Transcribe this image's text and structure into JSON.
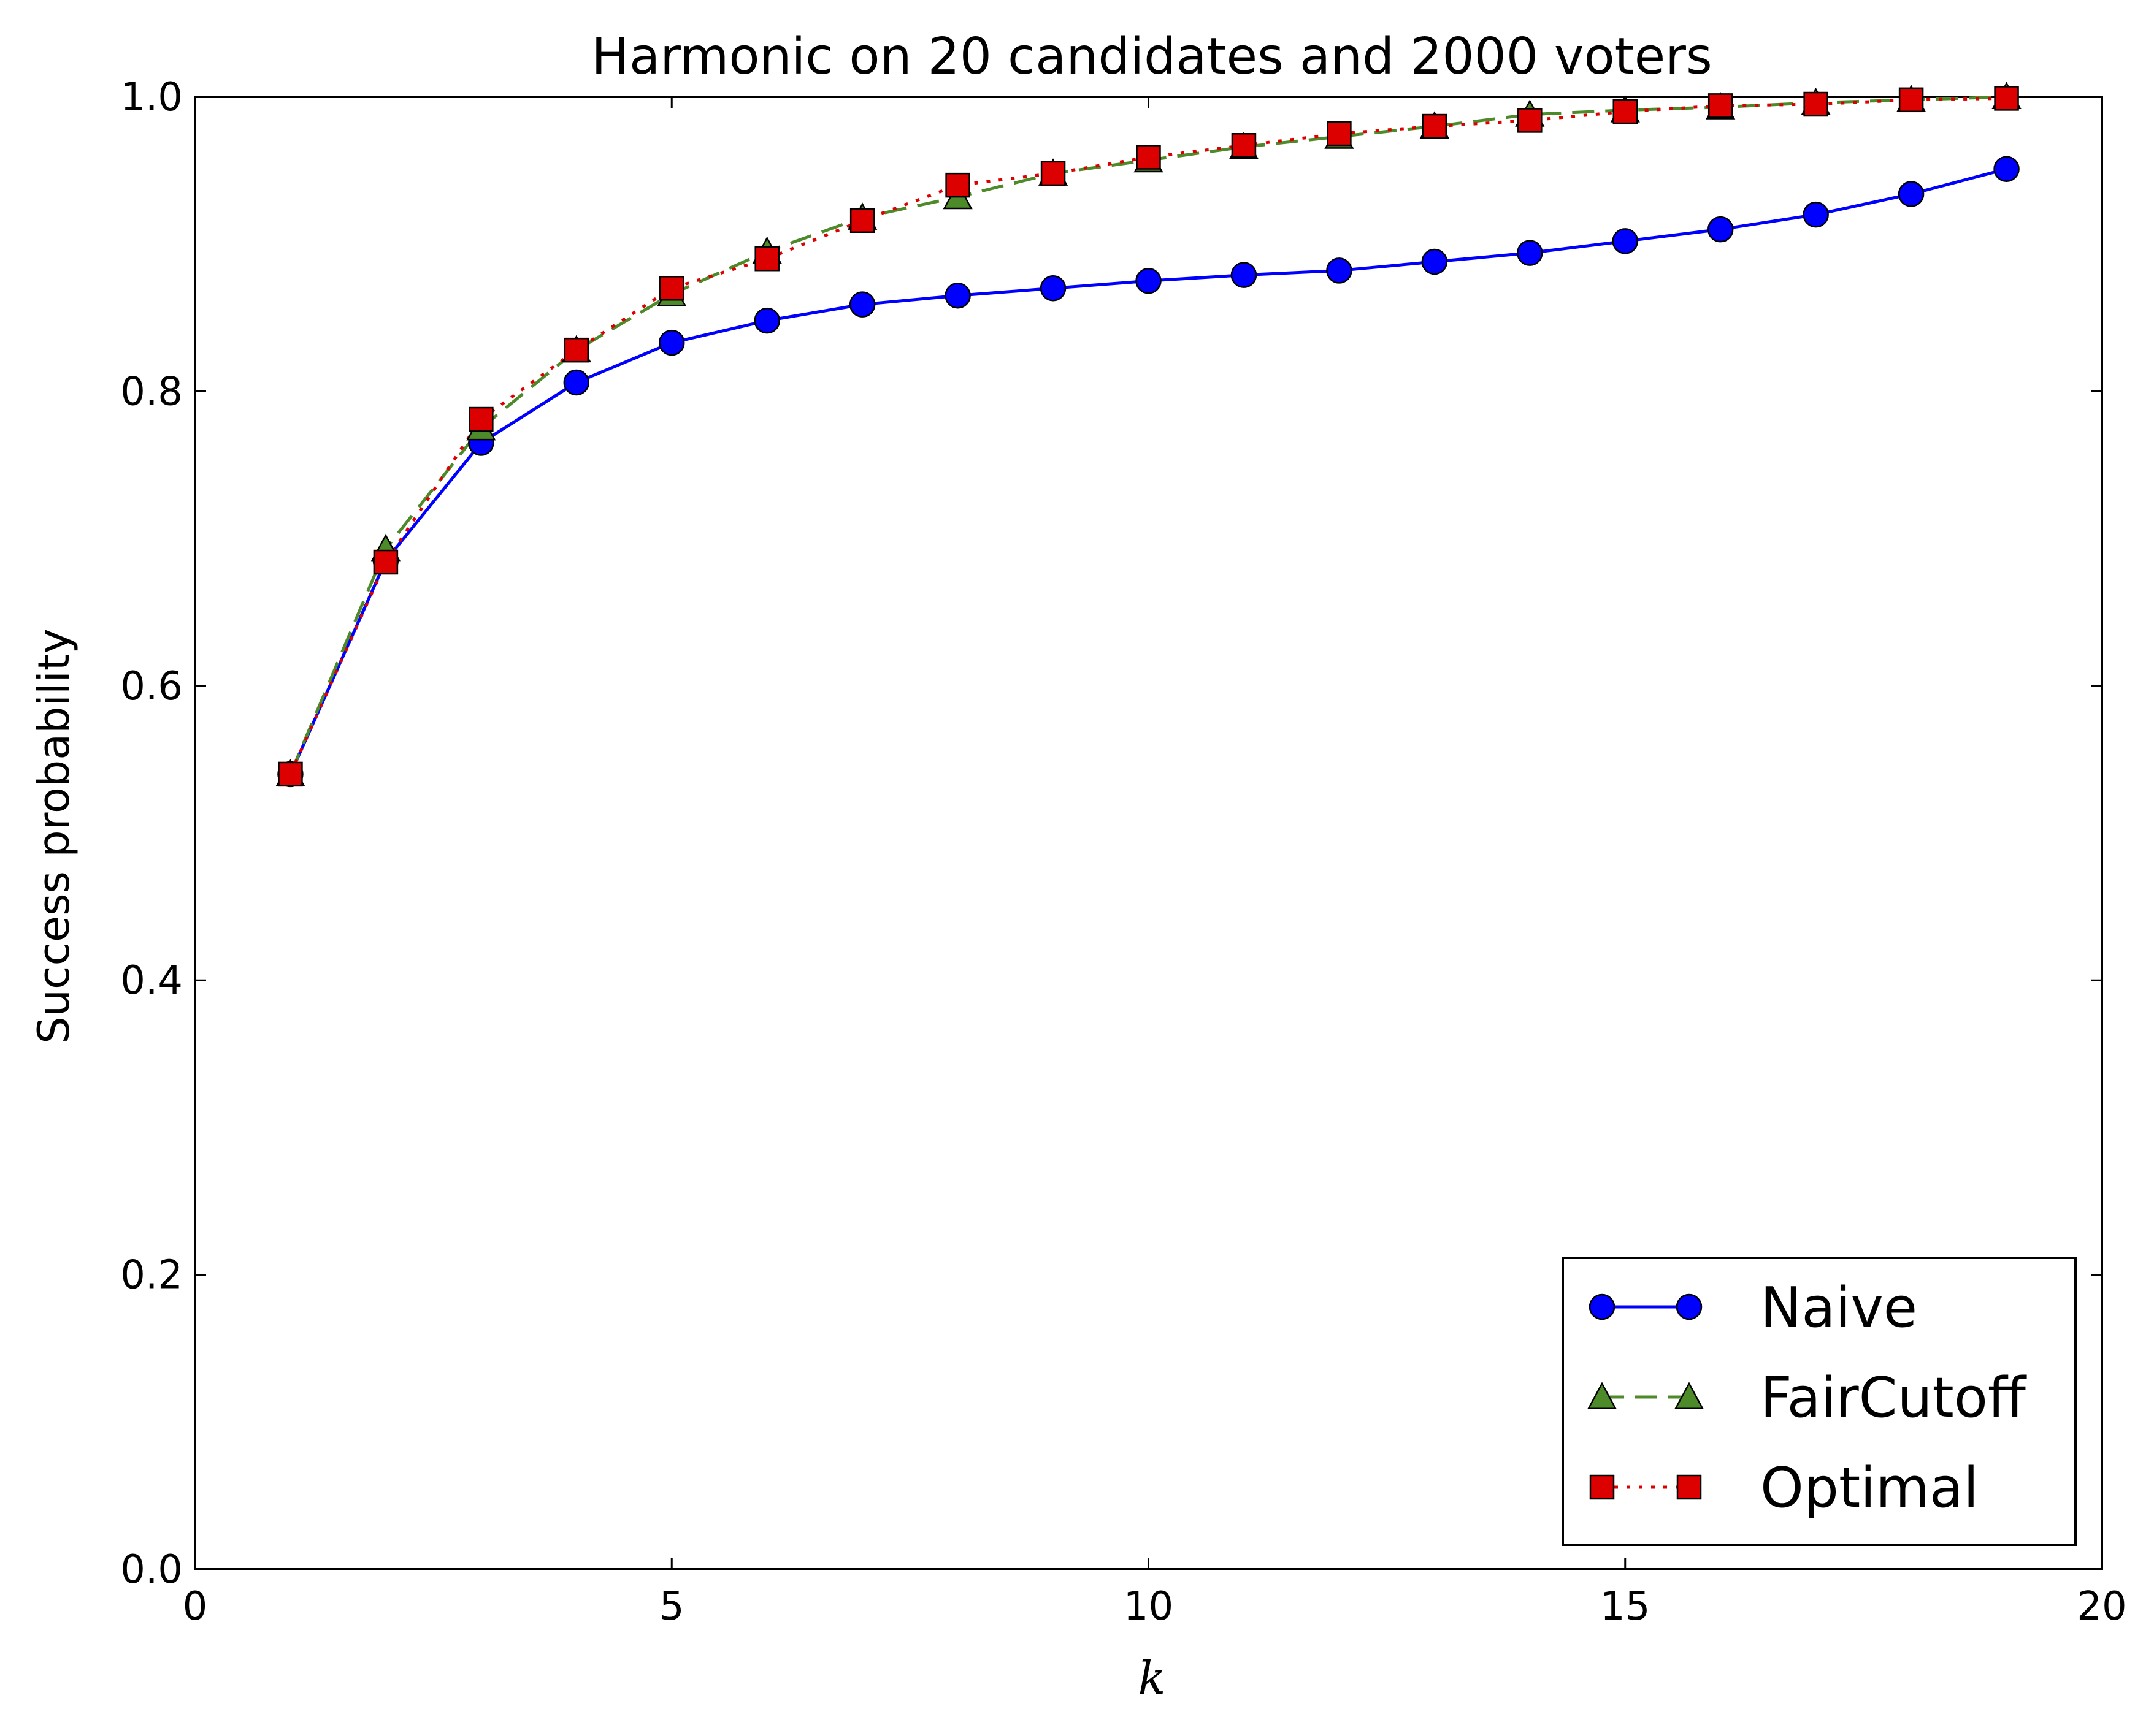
{
  "chart_data": {
    "type": "line",
    "title": "Harmonic on 20 candidates and 2000 voters",
    "xlabel": "k",
    "ylabel": "Success probability",
    "xlim": [
      0,
      20
    ],
    "ylim": [
      0.0,
      1.0
    ],
    "xticks": [
      0,
      5,
      10,
      15,
      20
    ],
    "xtick_labels": [
      "0",
      "5",
      "10",
      "15",
      "20"
    ],
    "yticks": [
      0.0,
      0.2,
      0.4,
      0.6,
      0.8,
      1.0
    ],
    "ytick_labels": [
      "0.0",
      "0.2",
      "0.4",
      "0.6",
      "0.8",
      "1.0"
    ],
    "grid": false,
    "legend_position": "lower-right",
    "x": [
      1,
      2,
      3,
      4,
      5,
      6,
      7,
      8,
      9,
      10,
      11,
      12,
      13,
      14,
      15,
      16,
      17,
      18,
      19
    ],
    "series": [
      {
        "name": "Naive",
        "color": "#0000ff",
        "marker": "circle",
        "line_style": "solid",
        "values": [
          0.54,
          0.685,
          0.765,
          0.806,
          0.833,
          0.848,
          0.859,
          0.865,
          0.87,
          0.875,
          0.879,
          0.882,
          0.888,
          0.894,
          0.902,
          0.91,
          0.92,
          0.934,
          0.951
        ]
      },
      {
        "name": "FairCutoff",
        "color": "#4d8a2a",
        "marker": "triangle",
        "line_style": "dashed",
        "values": [
          0.54,
          0.693,
          0.775,
          0.828,
          0.866,
          0.895,
          0.918,
          0.932,
          0.948,
          0.957,
          0.966,
          0.973,
          0.98,
          0.988,
          0.991,
          0.993,
          0.996,
          0.998,
          1.0
        ]
      },
      {
        "name": "Optimal",
        "color": "#dd0000",
        "marker": "square",
        "line_style": "dotted",
        "values": [
          0.54,
          0.684,
          0.781,
          0.828,
          0.87,
          0.89,
          0.916,
          0.94,
          0.948,
          0.959,
          0.967,
          0.975,
          0.98,
          0.984,
          0.99,
          0.994,
          0.995,
          0.998,
          0.999
        ]
      }
    ]
  }
}
